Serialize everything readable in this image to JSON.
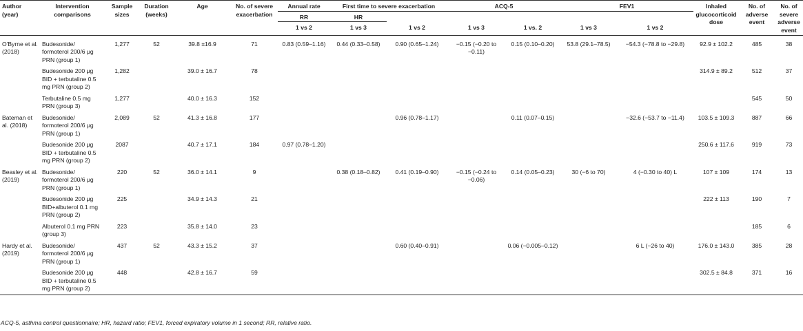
{
  "header": {
    "author": "Author (year)",
    "intervention": "Intervention comparisons",
    "sample": "Sample sizes",
    "duration": "Duration (weeks)",
    "age": "Age",
    "nsevere": "No. of severe exacerbation",
    "annual": "Annual rate",
    "first_time": "First time to severe exacerbation",
    "acq": "ACQ-5",
    "fev": "FEV1",
    "ics": "Inhaled glucocorticoid dose",
    "nadverse": "No. of adverse event",
    "nsevere_adverse": "No. of severe adverse event",
    "rr": "RR",
    "hr": "HR",
    "c_1v2": "1 vs 2",
    "c_1v3": "1 vs 3",
    "c_1v2b": "1 vs. 2"
  },
  "rows": [
    {
      "author": "O'Byrne et al. (2018)",
      "intervention": "Budesonide/ formoterol 200/6 μg PRN (group 1)",
      "n": "1,277",
      "dur": "52",
      "age": "39.8 ±16.9",
      "sev": "71",
      "rr": "0.83 (0.59–1.16)",
      "hr13": "0.44 (0.33–0.58)",
      "t12": "0.90 (0.65–1.24)",
      "acq13": "−0.15 (−0.20 to −0.11)",
      "acq12": "0.15 (0.10–0.20)",
      "fev13": "53.8 (29.1–78.5)",
      "fev12": "−54.3 (−78.8 to −29.8)",
      "ics": "92.9 ± 102.2",
      "ae": "485",
      "sae": "38"
    },
    {
      "author": "",
      "intervention": "Budesonide 200 μg BID + terbutaline 0.5 mg PRN (group 2)",
      "n": "1,282",
      "dur": "",
      "age": "39.0 ± 16.7",
      "sev": "78",
      "rr": "",
      "hr13": "",
      "t12": "",
      "acq13": "",
      "acq12": "",
      "fev13": "",
      "fev12": "",
      "ics": "314.9 ± 89.2",
      "ae": "512",
      "sae": "37"
    },
    {
      "author": "",
      "intervention": "Terbutaline 0.5 mg PRN (group 3)",
      "n": "1,277",
      "dur": "",
      "age": "40.0 ± 16.3",
      "sev": "152",
      "rr": "",
      "hr13": "",
      "t12": "",
      "acq13": "",
      "acq12": "",
      "fev13": "",
      "fev12": "",
      "ics": "",
      "ae": "545",
      "sae": "50"
    },
    {
      "author": "Bateman et al. (2018)",
      "intervention": "Budesonide/ formoterol 200/6 μg PRN (group 1)",
      "n": "2,089",
      "dur": "52",
      "age": "41.3 ± 16.8",
      "sev": "177",
      "rr": "",
      "hr13": "",
      "t12": "0.96 (0.78–1.17)",
      "acq13": "",
      "acq12": "0.11 (0.07–0.15)",
      "fev13": "",
      "fev12": "−32.6 (−53.7 to −11.4)",
      "ics": "103.5 ± 109.3",
      "ae": "887",
      "sae": "66"
    },
    {
      "author": "",
      "intervention": "Budesonide 200 μg BID + terbutaline 0.5 mg PRN (group 2)",
      "n": "2087",
      "dur": "",
      "age": "40.7 ± 17.1",
      "sev": "184",
      "rr": "0.97 (0.78–1.20)",
      "hr13": "",
      "t12": "",
      "acq13": "",
      "acq12": "",
      "fev13": "",
      "fev12": "",
      "ics": "250.6 ± 117.6",
      "ae": "919",
      "sae": "73"
    },
    {
      "author": "Beasley et al. (2019)",
      "intervention": "Budesonide/ formoterol 200/6 μg PRN (group 1)",
      "n": "220",
      "dur": "52",
      "age": "36.0 ± 14.1",
      "sev": "9",
      "rr": "",
      "hr13": "0.38 (0.18–0.82)",
      "t12": "0.41 (0.19–0.90)",
      "acq13": "−0.15 (−0.24 to −0.06)",
      "acq12": "0.14 (0.05–0.23)",
      "fev13": "30 (−6 to 70)",
      "fev12": "4 (−0.30 to 40) L",
      "ics": "107 ± 109",
      "ae": "174",
      "sae": "13"
    },
    {
      "author": "",
      "intervention": "Budesonide 200 μg BID+albuterol 0.1 mg PRN (group 2)",
      "n": "225",
      "dur": "",
      "age": "34.9 ± 14.3",
      "sev": "21",
      "rr": "",
      "hr13": "",
      "t12": "",
      "acq13": "",
      "acq12": "",
      "fev13": "",
      "fev12": "",
      "ics": "222 ± 113",
      "ae": "190",
      "sae": "7"
    },
    {
      "author": "",
      "intervention": "Albuterol 0.1 mg PRN (group 3)",
      "n": "223",
      "dur": "",
      "age": "35.8 ± 14.0",
      "sev": "23",
      "rr": "",
      "hr13": "",
      "t12": "",
      "acq13": "",
      "acq12": "",
      "fev13": "",
      "fev12": "",
      "ics": "",
      "ae": "185",
      "sae": "6"
    },
    {
      "author": "Hardy et al. (2019)",
      "intervention": "Budesonide/ formoterol 200/6 μg PRN (group 1)",
      "n": "437",
      "dur": "52",
      "age": "43.3 ± 15.2",
      "sev": "37",
      "rr": "",
      "hr13": "",
      "t12": "0.60 (0.40–0.91)",
      "acq13": "",
      "acq12": "0.06 (−0.005–0.12)",
      "fev13": "",
      "fev12": "6 L (−26 to 40)",
      "ics": "176.0 ± 143.0",
      "ae": "385",
      "sae": "28"
    },
    {
      "author": "",
      "intervention": "Budesonide 200 μg BID + terbutaline 0.5 mg PRN (group 2)",
      "n": "448",
      "dur": "",
      "age": "42.8 ± 16.7",
      "sev": "59",
      "rr": "",
      "hr13": "",
      "t12": "",
      "acq13": "",
      "acq12": "",
      "fev13": "",
      "fev12": "",
      "ics": "302.5 ± 84.8",
      "ae": "371",
      "sae": "16"
    }
  ],
  "footnote": "ACQ-5, asthma control questionnaire; HR, hazard ratio; FEV1, forced expiratory volume in 1 second; RR, relative ratio."
}
